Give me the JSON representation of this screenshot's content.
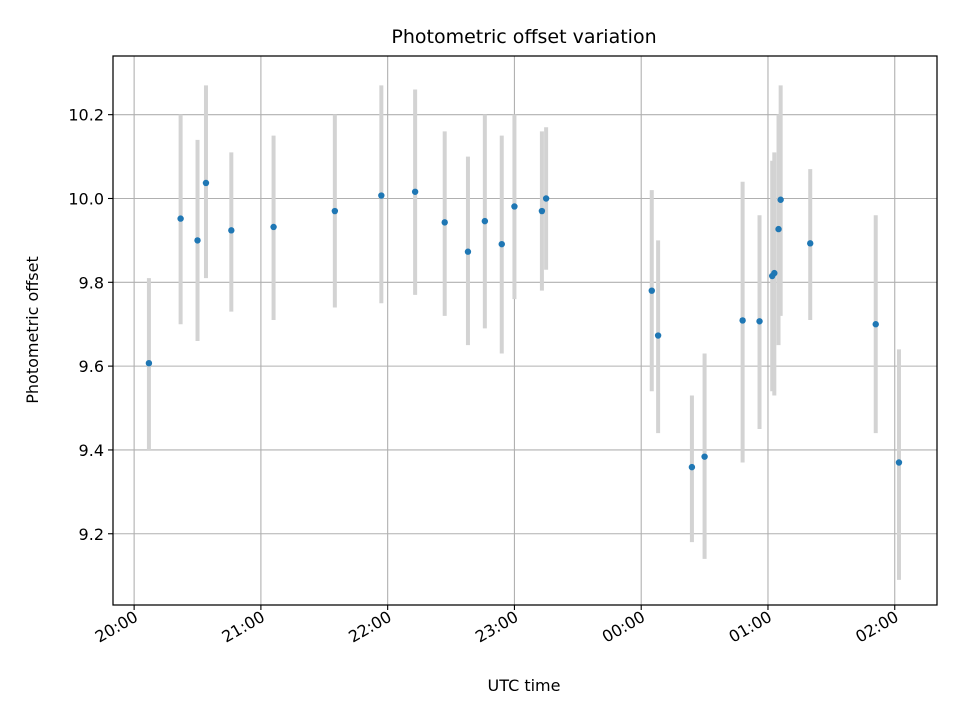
{
  "chart_data": {
    "type": "scatter",
    "title": "Photometric offset variation",
    "xlabel": "UTC time",
    "ylabel": "Photometric offset",
    "grid": true,
    "legend": "none",
    "xlim": [
      "19:50",
      "02:20"
    ],
    "ylim": [
      9.03,
      10.34
    ],
    "x_ticks": [
      "20:00",
      "21:00",
      "22:00",
      "23:00",
      "00:00",
      "01:00",
      "02:00"
    ],
    "y_ticks": [
      "9.2",
      "9.4",
      "9.6",
      "9.8",
      "10.0",
      "10.2"
    ],
    "colors": {
      "point": "#1f77b4",
      "errorbar": "#d3d3d3",
      "grid": "#b0b0b0"
    },
    "series": [
      {
        "points": [
          {
            "x": "20:07",
            "y": 9.607,
            "y_low": 9.4,
            "y_high": 9.81
          },
          {
            "x": "20:22",
            "y": 9.952,
            "y_low": 9.7,
            "y_high": 10.2
          },
          {
            "x": "20:30",
            "y": 9.9,
            "y_low": 9.66,
            "y_high": 10.14
          },
          {
            "x": "20:34",
            "y": 10.037,
            "y_low": 9.81,
            "y_high": 10.27
          },
          {
            "x": "20:46",
            "y": 9.924,
            "y_low": 9.73,
            "y_high": 10.11
          },
          {
            "x": "21:06",
            "y": 9.932,
            "y_low": 9.71,
            "y_high": 10.15
          },
          {
            "x": "21:35",
            "y": 9.97,
            "y_low": 9.74,
            "y_high": 10.2
          },
          {
            "x": "21:57",
            "y": 10.007,
            "y_low": 9.75,
            "y_high": 10.27
          },
          {
            "x": "22:13",
            "y": 10.016,
            "y_low": 9.77,
            "y_high": 10.26
          },
          {
            "x": "22:27",
            "y": 9.943,
            "y_low": 9.72,
            "y_high": 10.16
          },
          {
            "x": "22:38",
            "y": 9.873,
            "y_low": 9.65,
            "y_high": 10.1
          },
          {
            "x": "22:46",
            "y": 9.946,
            "y_low": 9.69,
            "y_high": 10.2
          },
          {
            "x": "22:54",
            "y": 9.891,
            "y_low": 9.63,
            "y_high": 10.15
          },
          {
            "x": "23:00",
            "y": 9.981,
            "y_low": 9.76,
            "y_high": 10.2
          },
          {
            "x": "23:13",
            "y": 9.97,
            "y_low": 9.78,
            "y_high": 10.16
          },
          {
            "x": "23:15",
            "y": 10.0,
            "y_low": 9.83,
            "y_high": 10.17
          },
          {
            "x": "00:05",
            "y": 9.78,
            "y_low": 9.54,
            "y_high": 10.02
          },
          {
            "x": "00:08",
            "y": 9.673,
            "y_low": 9.44,
            "y_high": 9.9
          },
          {
            "x": "00:24",
            "y": 9.359,
            "y_low": 9.18,
            "y_high": 9.53
          },
          {
            "x": "00:30",
            "y": 9.384,
            "y_low": 9.14,
            "y_high": 9.63
          },
          {
            "x": "00:48",
            "y": 9.709,
            "y_low": 9.37,
            "y_high": 10.04
          },
          {
            "x": "00:56",
            "y": 9.707,
            "y_low": 9.45,
            "y_high": 9.96
          },
          {
            "x": "01:02",
            "y": 9.815,
            "y_low": 9.54,
            "y_high": 10.09
          },
          {
            "x": "01:03",
            "y": 9.822,
            "y_low": 9.53,
            "y_high": 10.11
          },
          {
            "x": "01:05",
            "y": 9.927,
            "y_low": 9.65,
            "y_high": 10.2
          },
          {
            "x": "01:06",
            "y": 9.997,
            "y_low": 9.72,
            "y_high": 10.27
          },
          {
            "x": "01:20",
            "y": 9.893,
            "y_low": 9.71,
            "y_high": 10.07
          },
          {
            "x": "01:51",
            "y": 9.7,
            "y_low": 9.44,
            "y_high": 9.96
          },
          {
            "x": "02:02",
            "y": 9.37,
            "y_low": 9.09,
            "y_high": 9.64
          }
        ]
      }
    ]
  }
}
